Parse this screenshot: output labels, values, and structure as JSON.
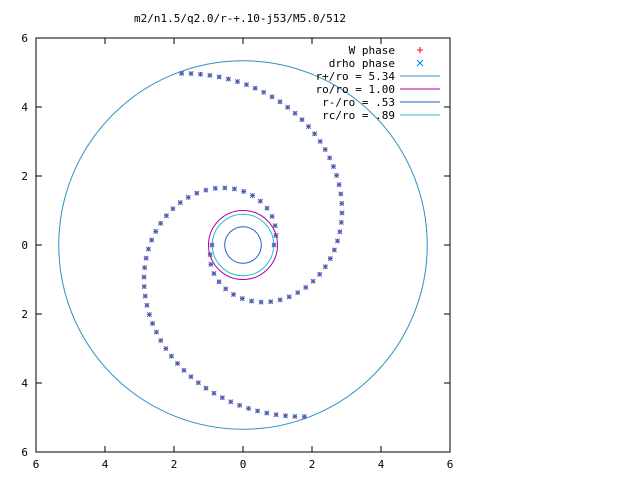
{
  "chart_data": {
    "type": "scatter",
    "title": "m2/n1.5/q2.0/r-+.10-j53/M5.0/512",
    "xlabel": "",
    "ylabel": "",
    "xlim": [
      -6,
      6
    ],
    "ylim": [
      -6,
      6
    ],
    "x_ticks": [
      "6",
      "4",
      "2",
      "0",
      "2",
      "4",
      "6"
    ],
    "y_ticks": [
      "6",
      "4",
      "2",
      "0",
      "2",
      "4",
      "6"
    ],
    "x_tick_values": [
      -6,
      -4,
      -2,
      0,
      2,
      4,
      6
    ],
    "y_tick_values": [
      6,
      4,
      2,
      0,
      -2,
      -4,
      -6
    ],
    "grid": false,
    "legend_position": "top-right",
    "series": [
      {
        "name": "W phase",
        "kind": "points",
        "marker": "plus",
        "color": "#ff0000"
      },
      {
        "name": "drho phase",
        "kind": "points",
        "marker": "cross",
        "color": "#0080ff"
      },
      {
        "name": "r+/ro = 5.34",
        "kind": "circle",
        "radius": 5.34,
        "color": "#3090c0"
      },
      {
        "name": "ro/ro = 1.00",
        "kind": "circle",
        "radius": 1.0,
        "color": "#b000b0"
      },
      {
        "name": "r-/ro = .53",
        "kind": "circle",
        "radius": 0.53,
        "color": "#2060c0"
      },
      {
        "name": "rc/ro = .89",
        "kind": "circle",
        "radius": 0.89,
        "color": "#20c0c0"
      }
    ],
    "spiral": {
      "arms": 2,
      "r_start": 0.9,
      "r_end": 5.3,
      "growth_per_radian": 0.35,
      "start_angle_deg": 0,
      "sense": "counterclockwise-outward"
    }
  }
}
